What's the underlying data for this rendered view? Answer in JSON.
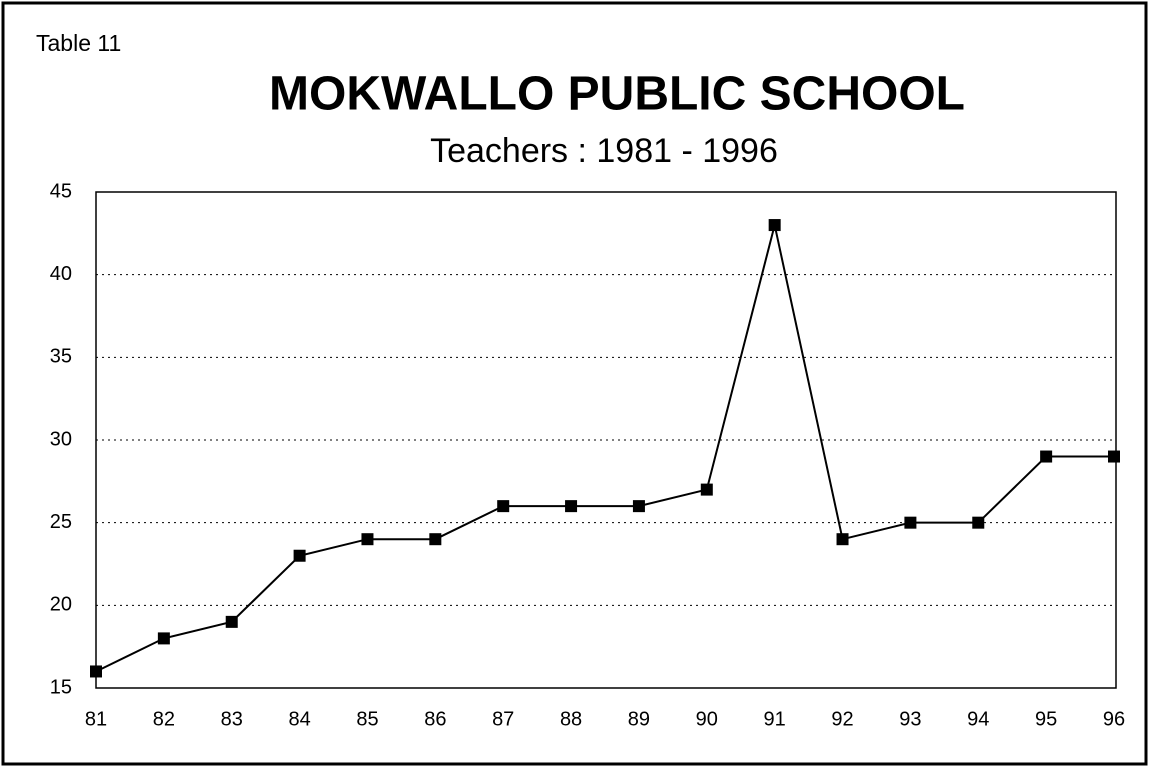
{
  "chart_data": {
    "type": "line",
    "label": "Table 11",
    "title": "MOKWALLO PUBLIC SCHOOL",
    "subtitle": "Teachers : 1981 - 1996",
    "categories": [
      "81",
      "82",
      "83",
      "84",
      "85",
      "86",
      "87",
      "88",
      "89",
      "90",
      "91",
      "92",
      "93",
      "94",
      "95",
      "96"
    ],
    "series": [
      {
        "name": "Teachers",
        "color": "#000000",
        "values": [
          16,
          18,
          19,
          23,
          24,
          24,
          26,
          26,
          26,
          27,
          43,
          24,
          25,
          25,
          29,
          29
        ]
      }
    ],
    "ylim": [
      15,
      45
    ],
    "yticks": [
      15,
      20,
      25,
      30,
      35,
      40,
      45
    ],
    "grid": true
  }
}
